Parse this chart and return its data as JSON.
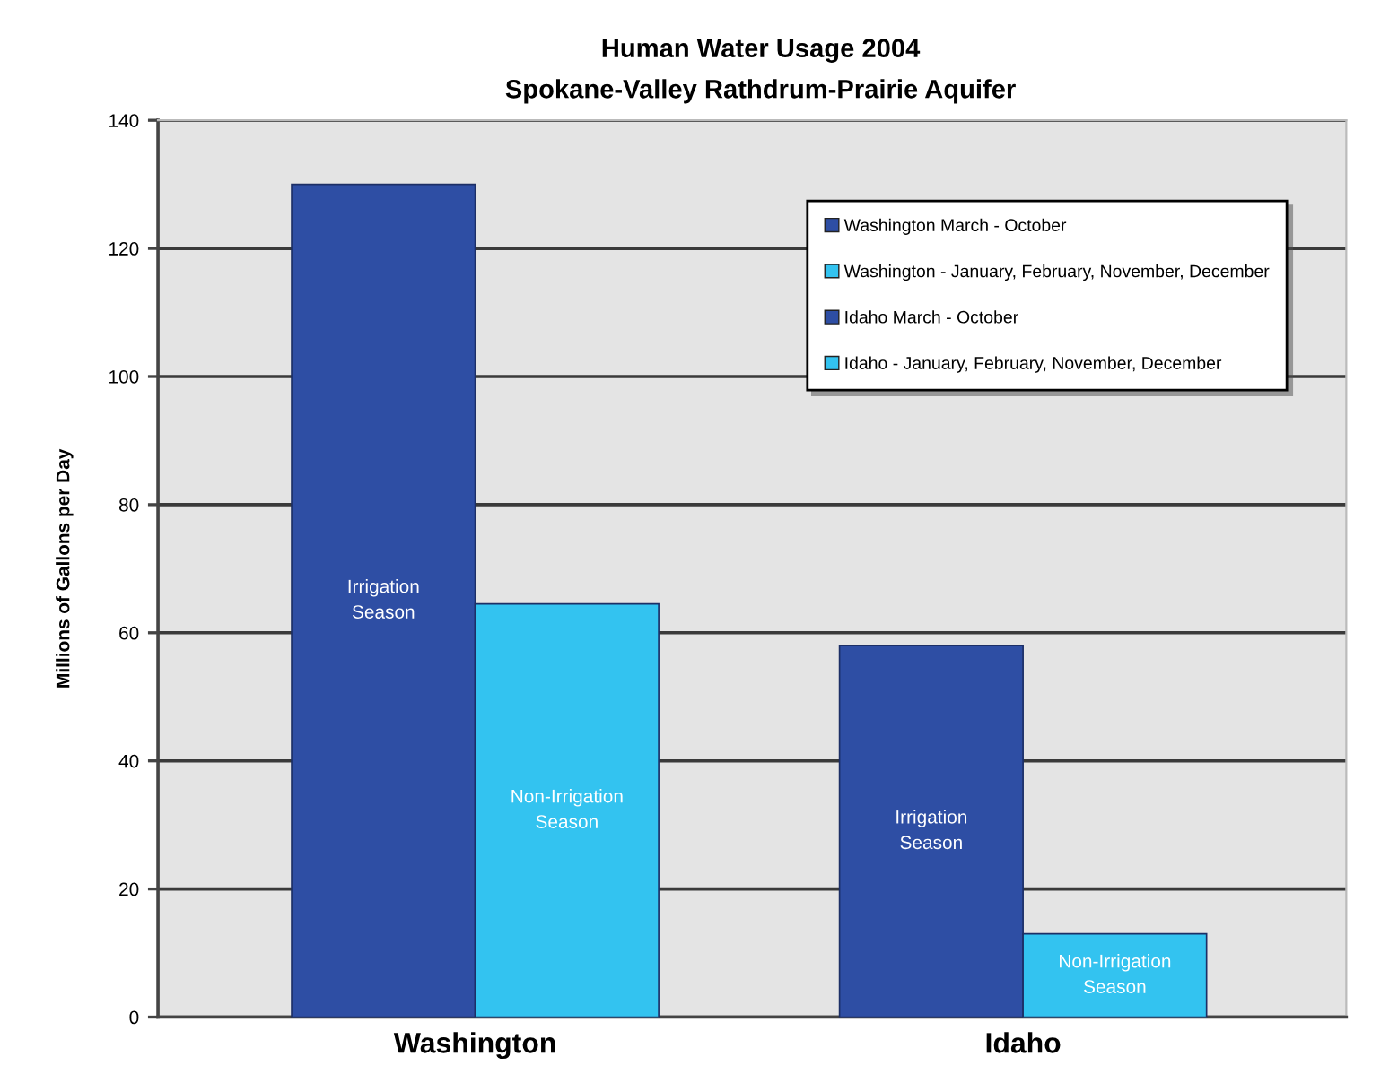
{
  "chart_data": {
    "type": "bar",
    "title": "Human Water Usage 2004",
    "subtitle": "Spokane-Valley Rathdrum-Prairie Aquifer",
    "ylabel": "Millions of Gallons per Day",
    "categories": [
      "Washington",
      "Idaho"
    ],
    "series": [
      {
        "name": "Washington March - October",
        "color": "#2e4ea4",
        "values": [
          130,
          null
        ],
        "value_labels": [
          "Irrigation\nSeason",
          null
        ]
      },
      {
        "name": "Washington - January, February, November, December",
        "color": "#33c3f0",
        "values": [
          64.5,
          null
        ],
        "value_labels": [
          "Non-Irrigation\nSeason",
          null
        ]
      },
      {
        "name": "Idaho March - October",
        "color": "#2e4ea4",
        "values": [
          null,
          58
        ],
        "value_labels": [
          null,
          "Irrigation\nSeason"
        ]
      },
      {
        "name": "Idaho - January, February, November, December",
        "color": "#33c3f0",
        "values": [
          null,
          13
        ],
        "value_labels": [
          null,
          "Non-Irrigation\nSeason"
        ]
      }
    ],
    "ylim": [
      0,
      140
    ],
    "yticks": [
      0,
      20,
      40,
      60,
      80,
      100,
      120,
      140
    ],
    "grid": "y",
    "legend": "top right"
  }
}
